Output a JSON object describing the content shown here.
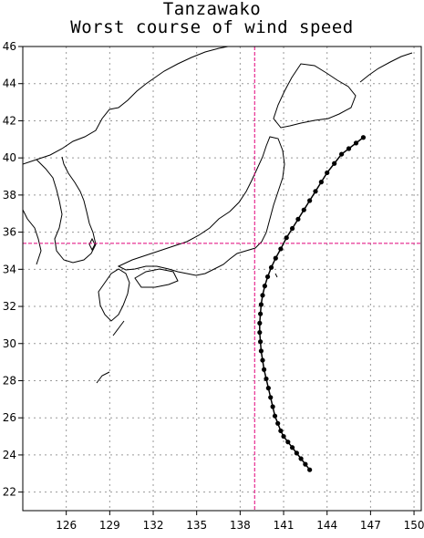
{
  "header": {
    "title": "Tanzawako",
    "subtitle": "Worst course of wind speed"
  },
  "map": {
    "lon_range": [
      123,
      150.5
    ],
    "lat_range": [
      21,
      46
    ],
    "x_ticks": [
      126,
      129,
      132,
      135,
      138,
      141,
      144,
      147,
      150
    ],
    "y_ticks": [
      22,
      24,
      26,
      28,
      30,
      32,
      34,
      36,
      38,
      40,
      42,
      44,
      46
    ],
    "grid": true,
    "colors": {
      "coastline": "#000000",
      "grid": "#999999",
      "crosshair": "#e0007a",
      "track": "#000000"
    },
    "crosshair": {
      "lon": 139.0,
      "lat": 35.4
    },
    "track": [
      [
        142.8,
        23.2
      ],
      [
        142.5,
        23.5
      ],
      [
        142.2,
        23.8
      ],
      [
        141.9,
        24.1
      ],
      [
        141.6,
        24.4
      ],
      [
        141.3,
        24.7
      ],
      [
        141.0,
        25.0
      ],
      [
        140.8,
        25.3
      ],
      [
        140.6,
        25.7
      ],
      [
        140.4,
        26.1
      ],
      [
        140.25,
        26.6
      ],
      [
        140.1,
        27.1
      ],
      [
        139.95,
        27.6
      ],
      [
        139.8,
        28.1
      ],
      [
        139.65,
        28.6
      ],
      [
        139.55,
        29.1
      ],
      [
        139.45,
        29.6
      ],
      [
        139.4,
        30.1
      ],
      [
        139.35,
        30.6
      ],
      [
        139.35,
        31.1
      ],
      [
        139.4,
        31.6
      ],
      [
        139.45,
        32.1
      ],
      [
        139.55,
        32.6
      ],
      [
        139.7,
        33.1
      ],
      [
        139.9,
        33.6
      ],
      [
        140.15,
        34.1
      ],
      [
        140.45,
        34.6
      ],
      [
        140.8,
        35.1
      ],
      [
        141.2,
        35.7
      ],
      [
        141.6,
        36.2
      ],
      [
        142.0,
        36.7
      ],
      [
        142.4,
        37.2
      ],
      [
        142.8,
        37.7
      ],
      [
        143.2,
        38.2
      ],
      [
        143.6,
        38.7
      ],
      [
        144.0,
        39.2
      ],
      [
        144.5,
        39.7
      ],
      [
        145.0,
        40.2
      ],
      [
        145.5,
        40.5
      ],
      [
        146.0,
        40.8
      ],
      [
        146.5,
        41.1
      ]
    ]
  }
}
